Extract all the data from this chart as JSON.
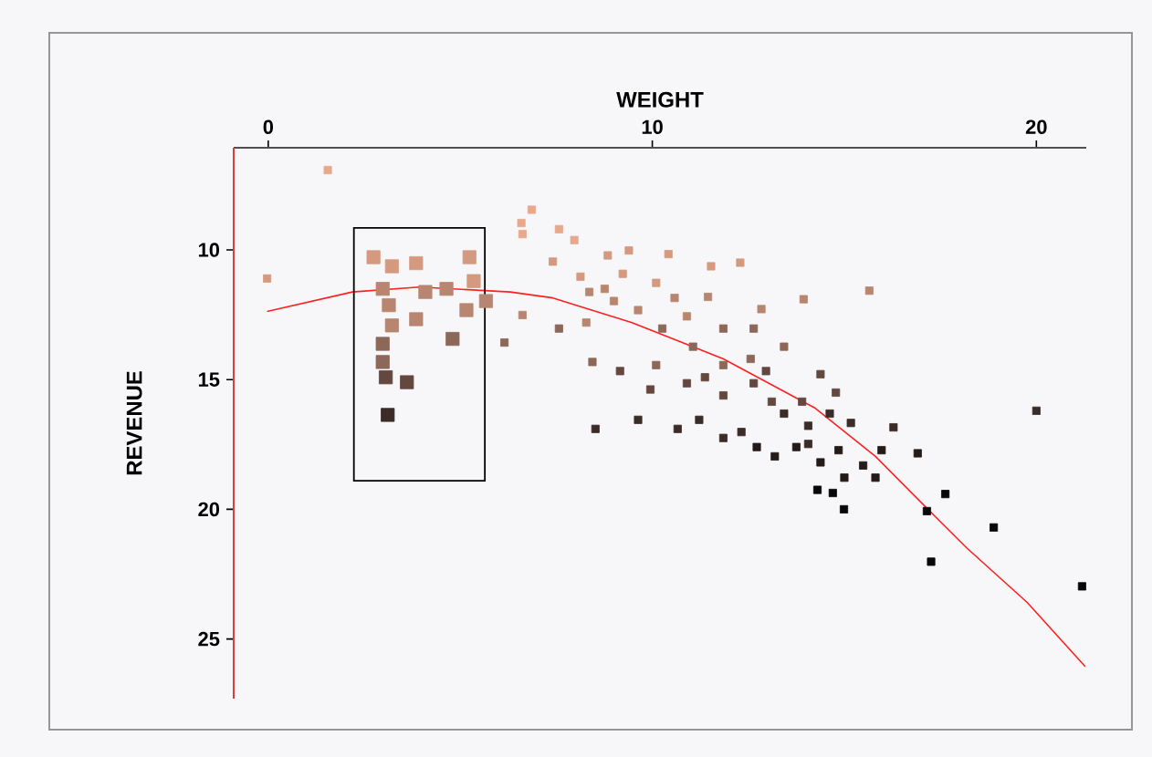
{
  "chart_data": {
    "type": "bubble",
    "xlabel": "WEIGHT",
    "ylabel": "REVENUE",
    "xlim": [
      -0.9,
      21.3
    ],
    "ylim": [
      27.3,
      6.06
    ],
    "xticks": [
      0,
      10,
      20
    ],
    "yticks": [
      10,
      15,
      20,
      25
    ],
    "series": [
      {
        "marker": "square",
        "x": [
          1.55,
          -0.03,
          6.86,
          6.59,
          7.57,
          7.97,
          6.62,
          7.41,
          8.36,
          8.84,
          9.39,
          10.42,
          11.53,
          12.29,
          9.23,
          10.1,
          9.0,
          9.63,
          10.58,
          11.45,
          10.9,
          11.85,
          12.84,
          13.94,
          15.65,
          7.57,
          8.28,
          6.62,
          6.15,
          8.44,
          9.16,
          10.1,
          9.95,
          10.9,
          11.37,
          11.85,
          12.64,
          12.56,
          12.96,
          13.43,
          13.11,
          13.43,
          13.9,
          14.38,
          14.78,
          14.06,
          14.62,
          15.17,
          8.52,
          9.63,
          10.66,
          11.22,
          11.85,
          12.32,
          12.72,
          13.19,
          13.75,
          14.06,
          14.38,
          14.85,
          15.49,
          15.81,
          15.97,
          16.28,
          16.91,
          15.0,
          14.3,
          14.7,
          14.99,
          17.15,
          17.63,
          17.26,
          18.89,
          20.0,
          21.19,
          10.26,
          11.06,
          11.85,
          12.64,
          8.13,
          8.76,
          2.74,
          3.22,
          3.85,
          5.24,
          2.98,
          4.09,
          4.64,
          5.35,
          5.67,
          3.14,
          5.16,
          3.85,
          3.22,
          4.8,
          2.98,
          2.98,
          3.06,
          3.61,
          3.11
        ],
        "values": [
          6.92,
          11.1,
          8.45,
          8.96,
          9.2,
          9.62,
          9.39,
          10.45,
          11.62,
          10.21,
          10.02,
          10.16,
          10.63,
          10.49,
          10.92,
          11.27,
          11.97,
          12.32,
          11.85,
          11.81,
          12.56,
          13.03,
          12.28,
          11.9,
          11.57,
          13.03,
          12.8,
          12.51,
          13.57,
          14.32,
          14.67,
          14.44,
          15.38,
          15.14,
          14.91,
          15.61,
          13.03,
          14.2,
          14.67,
          13.73,
          15.85,
          16.31,
          15.85,
          14.79,
          15.5,
          16.78,
          16.31,
          16.67,
          16.9,
          16.55,
          16.9,
          16.55,
          17.25,
          17.02,
          17.6,
          17.96,
          17.6,
          17.48,
          18.19,
          17.72,
          18.31,
          18.78,
          17.72,
          16.84,
          17.84,
          18.78,
          19.25,
          19.37,
          20.0,
          20.07,
          19.41,
          22.02,
          20.7,
          16.2,
          22.97,
          13.03,
          13.73,
          14.44,
          15.14,
          11.03,
          11.5,
          10.28,
          10.63,
          10.51,
          10.28,
          11.5,
          11.62,
          11.5,
          11.2,
          11.97,
          12.13,
          12.32,
          12.67,
          12.91,
          13.43,
          13.62,
          14.32,
          14.91,
          15.1,
          16.36
        ],
        "sizes": [
          0.33,
          0.33,
          0.33,
          0.33,
          0.33,
          0.33,
          0.33,
          0.33,
          0.33,
          0.33,
          0.33,
          0.33,
          0.33,
          0.33,
          0.33,
          0.33,
          0.33,
          0.33,
          0.33,
          0.33,
          0.33,
          0.33,
          0.33,
          0.33,
          0.33,
          0.33,
          0.33,
          0.33,
          0.33,
          0.33,
          0.33,
          0.33,
          0.33,
          0.33,
          0.33,
          0.33,
          0.33,
          0.33,
          0.33,
          0.33,
          0.33,
          0.33,
          0.33,
          0.33,
          0.33,
          0.33,
          0.33,
          0.33,
          0.33,
          0.33,
          0.33,
          0.33,
          0.33,
          0.33,
          0.33,
          0.33,
          0.33,
          0.33,
          0.33,
          0.33,
          0.33,
          0.33,
          0.33,
          0.33,
          0.33,
          0.33,
          0.33,
          0.33,
          0.33,
          0.33,
          0.33,
          0.33,
          0.33,
          0.33,
          0.33,
          0.33,
          0.33,
          0.33,
          0.33,
          0.33,
          0.33,
          1,
          1,
          1,
          1,
          1,
          1,
          1,
          1,
          1,
          1,
          1,
          1,
          1,
          1,
          1,
          1,
          1,
          1,
          1
        ],
        "colors": [
          "#e8a88c",
          "#d49a80",
          "#e8a88c",
          "#e8a88c",
          "#e8a88c",
          "#e8a88c",
          "#e8a88c",
          "#d49a80",
          "#b88670",
          "#d49a80",
          "#d49a80",
          "#d49a80",
          "#d49a80",
          "#d49a80",
          "#d49a80",
          "#d49a80",
          "#b88670",
          "#b88670",
          "#b88670",
          "#b88670",
          "#b88670",
          "#8c6858",
          "#b88670",
          "#b88670",
          "#b88670",
          "#8c6858",
          "#b88670",
          "#b88670",
          "#8c6858",
          "#8c6858",
          "#644840",
          "#8c6858",
          "#644840",
          "#644840",
          "#644840",
          "#644840",
          "#8c6858",
          "#8c6858",
          "#644840",
          "#8c6858",
          "#644840",
          "#3c2c28",
          "#644840",
          "#644840",
          "#644840",
          "#3c2c28",
          "#3c2c28",
          "#3c2c28",
          "#3c2c28",
          "#3c2c28",
          "#3c2c28",
          "#3c2c28",
          "#3c2c28",
          "#3c2c28",
          "#241a18",
          "#241a18",
          "#241a18",
          "#3c2c28",
          "#241a18",
          "#241a18",
          "#241a18",
          "#241a18",
          "#241a18",
          "#3c2c28",
          "#241a18",
          "#241a18",
          "#080808",
          "#080808",
          "#080808",
          "#080808",
          "#080808",
          "#080808",
          "#080808",
          "#3c2c28",
          "#080808",
          "#8c6858",
          "#8c6858",
          "#8c6858",
          "#644840",
          "#d49a80",
          "#b88670",
          "#d49a80",
          "#d49a80",
          "#d49a80",
          "#d49a80",
          "#b88670",
          "#b88670",
          "#b88670",
          "#d49a80",
          "#b88670",
          "#b88670",
          "#b88670",
          "#b88670",
          "#b88670",
          "#8c6858",
          "#8c6858",
          "#8c6858",
          "#644840",
          "#644840",
          "#3c2c28"
        ]
      },
      {
        "type": "line",
        "color": "#ff2020",
        "x": [
          -0.03,
          2.19,
          3.93,
          6.3,
          7.41,
          9.47,
          11.85,
          14.22,
          15.81,
          17.07,
          18.18,
          19.76,
          21.27
        ],
        "values": [
          12.37,
          11.62,
          11.43,
          11.62,
          11.85,
          12.8,
          14.2,
          16.08,
          17.96,
          19.84,
          21.48,
          23.59,
          26.06
        ]
      }
    ]
  }
}
